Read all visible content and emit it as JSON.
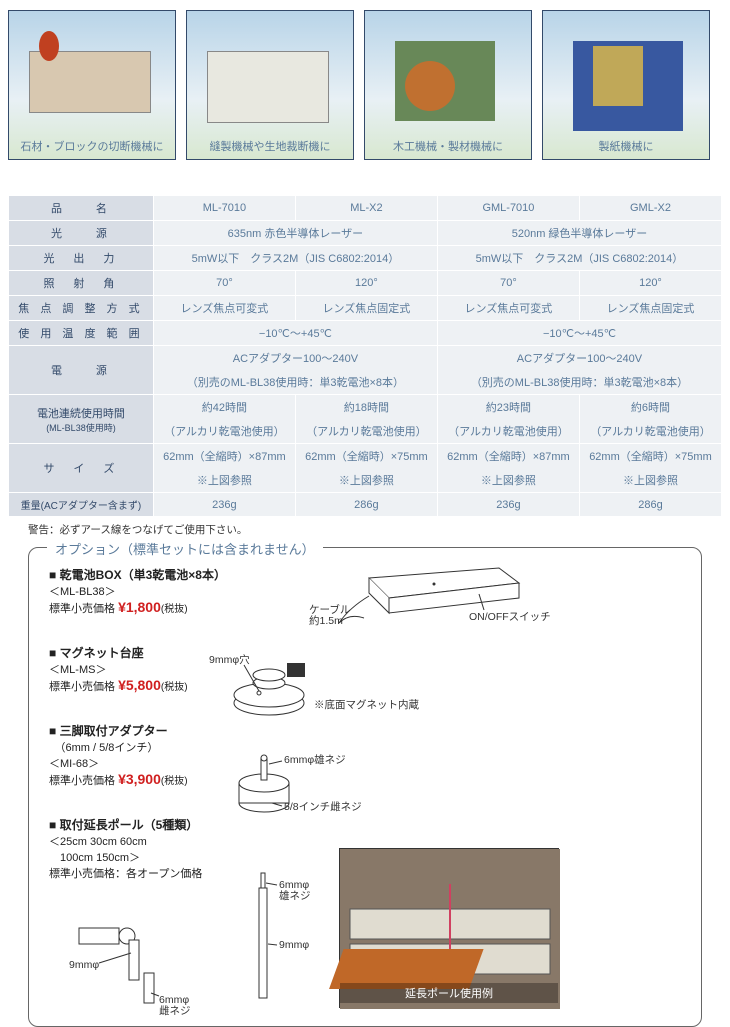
{
  "images": [
    {
      "caption": "石材・ブロックの切断機械に"
    },
    {
      "caption": "縫製機械や生地裁断機に"
    },
    {
      "caption": "木工機械・製材機械に"
    },
    {
      "caption": "製紙機械に"
    }
  ],
  "spec_table": {
    "row_labels": [
      "品　　名",
      "光　　源",
      "光　出　力",
      "照　射　角",
      "焦 点 調 整 方 式",
      "使 用 温 度 範 囲",
      "電　　源",
      "電池連続使用時間",
      "サ　イ　ズ",
      "重量(ACアダプター含まず)"
    ],
    "battery_sub": "(ML-BL38使用時)",
    "models": [
      "ML-7010",
      "ML-X2",
      "GML-7010",
      "GML-X2"
    ],
    "light_source": [
      "635nm 赤色半導体レーザー",
      "520nm 緑色半導体レーザー"
    ],
    "light_output": [
      "5mW以下　クラス2M（JIS C6802:2014）",
      "5mW以下　クラス2M（JIS C6802:2014）"
    ],
    "angle": [
      "70°",
      "120°",
      "70°",
      "120°"
    ],
    "focus": [
      "レンズ焦点可変式",
      "レンズ焦点固定式",
      "レンズ焦点可変式",
      "レンズ焦点固定式"
    ],
    "temp": [
      "−10℃〜+45℃",
      "−10℃〜+45℃"
    ],
    "power_1": [
      "ACアダプター100〜240V",
      "ACアダプター100〜240V"
    ],
    "power_2": [
      "（別売のML-BL38使用時：単3乾電池×8本）",
      "（別売のML-BL38使用時：単3乾電池×8本）"
    ],
    "battery_1": [
      "約42時間",
      "約18時間",
      "約23時間",
      "約6時間"
    ],
    "battery_2": [
      "（アルカリ乾電池使用）",
      "（アルカリ乾電池使用）",
      "（アルカリ乾電池使用）",
      "（アルカリ乾電池使用）"
    ],
    "size_1": [
      "62mm（全縮時）×87mm",
      "62mm（全縮時）×75mm",
      "62mm（全縮時）×87mm",
      "62mm（全縮時）×75mm"
    ],
    "size_2": [
      "※上図参照",
      "※上図参照",
      "※上図参照",
      "※上図参照"
    ],
    "weight": [
      "236g",
      "286g",
      "236g",
      "286g"
    ]
  },
  "warning": "警告：必ずアース線をつなげてご使用下さい。",
  "options_title": "オプション（標準セットには含まれません）",
  "options": [
    {
      "title": "■ 乾電池BOX（単3乾電池×8本）",
      "code": "＜ML-BL38＞",
      "price_label": "標準小売価格",
      "price": "¥1,800",
      "tax": "(税抜)"
    },
    {
      "title": "■ マグネット台座",
      "code": "＜ML-MS＞",
      "price_label": "標準小売価格",
      "price": "¥5,800",
      "tax": "(税抜)"
    },
    {
      "title": "■ 三脚取付アダプター",
      "sub": "　（6mm / 5/8インチ）",
      "code": "＜MI-68＞",
      "price_label": "標準小売価格",
      "price": "¥3,900",
      "tax": "(税抜)"
    },
    {
      "title": "■ 取付延長ポール（5種類）",
      "sub": "＜25cm 30cm 60cm\n　100cm 150cm＞",
      "price_label": "標準小売価格：各オープン価格",
      "price": "",
      "tax": ""
    }
  ],
  "diagram_labels": {
    "cable": "ケーブル\n約1.5m",
    "switch": "ON/OFFスイッチ",
    "hole": "9mmφ穴",
    "magnet": "※底面マグネット内蔵",
    "screw6": "6mmφ雄ネジ",
    "screw58": "5/8インチ雌ネジ",
    "screw6f": "6mmφ\n雌ネジ",
    "pole9": "9mmφ",
    "pole9b": "9mmφ",
    "pole_photo": "延長ポール使用例"
  },
  "colors": {
    "border_table": "#ffffff",
    "bg_header": "#d8dde5",
    "bg_cell": "#eef1f4",
    "text_header": "#334a6a",
    "text_cell": "#5a7a9a",
    "price": "#d02020"
  }
}
